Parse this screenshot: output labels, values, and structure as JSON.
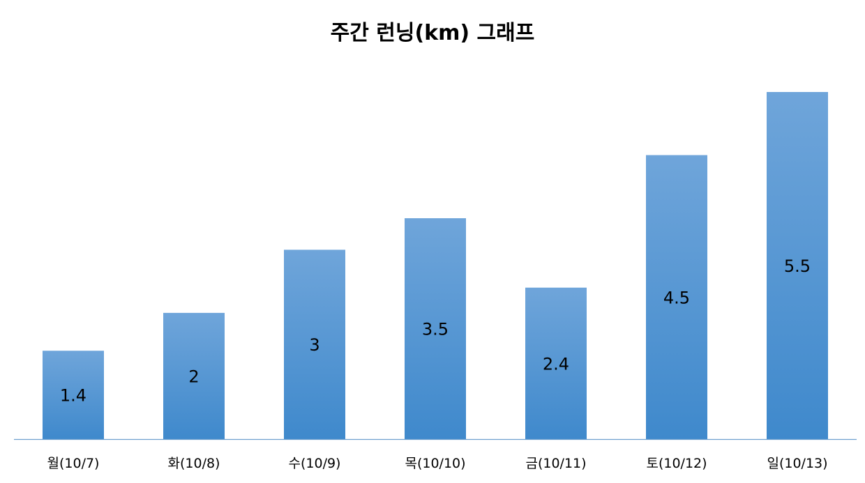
{
  "chart_data": {
    "type": "bar",
    "title": "주간 런닝(km) 그래프",
    "categories": [
      "월(10/7)",
      "화(10/8)",
      "수(10/9)",
      "목(10/10)",
      "금(10/11)",
      "토(10/12)",
      "일(10/13)"
    ],
    "values": [
      1.4,
      2,
      3,
      3.5,
      2.4,
      4.5,
      5.5
    ],
    "value_labels": [
      "1.4",
      "2",
      "3",
      "3.5",
      "2.4",
      "4.5",
      "5.5"
    ],
    "xlabel": "",
    "ylabel": "",
    "ylim": [
      0,
      5.5
    ],
    "grid": false,
    "legend": "none",
    "colors": {
      "bar_top": "#6fa5da",
      "bar_bottom": "#3f89cc",
      "axis": "#6e9fcf"
    }
  }
}
